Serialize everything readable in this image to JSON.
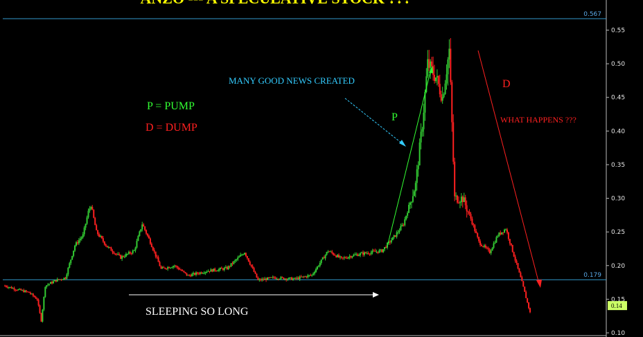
{
  "chart_data": {
    "type": "candlestick",
    "title": "ANZO --- A SPECULATIVE STOCK ???",
    "y_axis": {
      "range": [
        0.1,
        0.575
      ],
      "ticks": [
        0.55,
        0.5,
        0.45,
        0.4,
        0.35,
        0.3,
        0.25,
        0.2,
        0.15,
        0.1
      ],
      "tick_labels": [
        "0.55",
        "0.50",
        "0.45",
        "0.40",
        "0.35",
        "0.30",
        "0.25",
        "0.20",
        "0.15",
        "0.10"
      ],
      "position": "right"
    },
    "grid": false,
    "bars": 300,
    "price_path": [
      [
        0,
        0.17
      ],
      [
        8,
        0.165
      ],
      [
        18,
        0.16
      ],
      [
        24,
        0.15
      ],
      [
        27,
        0.118
      ],
      [
        30,
        0.17
      ],
      [
        38,
        0.178
      ],
      [
        45,
        0.182
      ],
      [
        52,
        0.23
      ],
      [
        58,
        0.245
      ],
      [
        62,
        0.28
      ],
      [
        64,
        0.29
      ],
      [
        68,
        0.25
      ],
      [
        76,
        0.228
      ],
      [
        86,
        0.212
      ],
      [
        96,
        0.222
      ],
      [
        102,
        0.262
      ],
      [
        108,
        0.235
      ],
      [
        116,
        0.195
      ],
      [
        126,
        0.2
      ],
      [
        136,
        0.185
      ],
      [
        150,
        0.192
      ],
      [
        165,
        0.196
      ],
      [
        178,
        0.22
      ],
      [
        188,
        0.178
      ],
      [
        200,
        0.182
      ],
      [
        215,
        0.18
      ],
      [
        228,
        0.186
      ],
      [
        240,
        0.222
      ],
      [
        250,
        0.21
      ],
      [
        258,
        0.215
      ],
      [
        266,
        0.218
      ],
      [
        280,
        0.222
      ],
      [
        290,
        0.245
      ],
      [
        296,
        0.262
      ],
      [
        305,
        0.32
      ],
      [
        310,
        0.41
      ],
      [
        314,
        0.5
      ],
      [
        320,
        0.48
      ],
      [
        325,
        0.45
      ],
      [
        330,
        0.52
      ],
      [
        334,
        0.3
      ],
      [
        340,
        0.3
      ],
      [
        346,
        0.27
      ],
      [
        352,
        0.235
      ],
      [
        360,
        0.22
      ],
      [
        366,
        0.245
      ],
      [
        372,
        0.255
      ],
      [
        378,
        0.215
      ],
      [
        384,
        0.175
      ],
      [
        390,
        0.13
      ]
    ],
    "horizontal_lines": [
      {
        "value": 0.567,
        "label": "0.567",
        "color": "#3399cc"
      },
      {
        "value": 0.179,
        "label": "0.179",
        "color": "#3399cc"
      }
    ],
    "last_price": {
      "value": 0.14,
      "label": "0.14",
      "color": "#ccff66"
    },
    "candle_colors": {
      "up": "#33cc33",
      "down": "#ff2020"
    },
    "annotations": [
      {
        "id": "legend-pump",
        "text": "P = PUMP",
        "color": "#33ff33"
      },
      {
        "id": "legend-dump",
        "text": "D = DUMP",
        "color": "#ff2020"
      },
      {
        "id": "news",
        "text": "MANY GOOD NEWS CREATED",
        "color": "#33ccff"
      },
      {
        "id": "pump-letter",
        "text": "P",
        "color": "#33ff33"
      },
      {
        "id": "dump-letter",
        "text": "D",
        "color": "#ff2020"
      },
      {
        "id": "what-happens",
        "text": "WHAT HAPPENS ???",
        "color": "#ff2020"
      },
      {
        "id": "sleeping",
        "text": "SLEEPING SO LONG",
        "color": "#ffffff"
      }
    ]
  }
}
